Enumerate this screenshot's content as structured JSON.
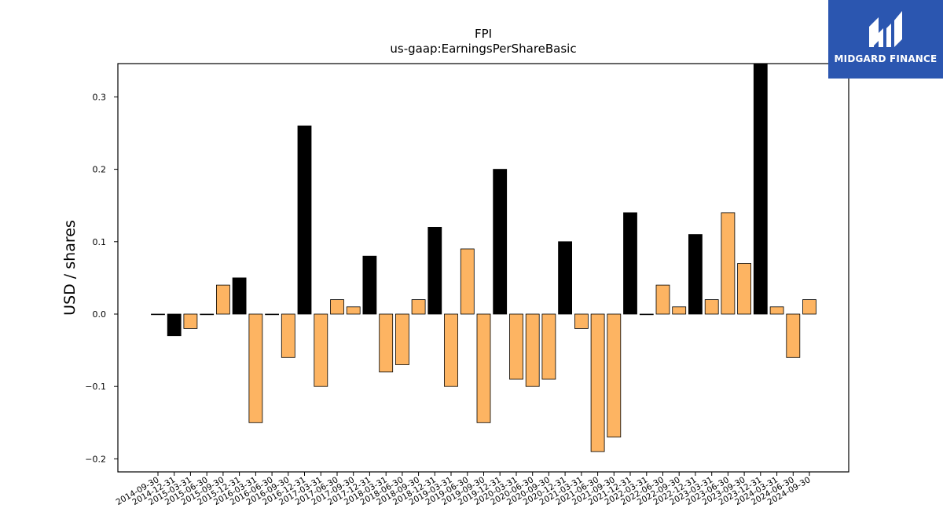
{
  "logo": {
    "text": "MIDGARD FINANCE",
    "background": "#2b56b0"
  },
  "colors": {
    "positive_quarter": "#fdb462",
    "fiscal_year_end": "#000000",
    "edge": "#000000"
  },
  "chart_data": {
    "type": "bar",
    "title": "FPI",
    "subtitle": "us-gaap:EarningsPerShareBasic",
    "xlabel": "",
    "ylabel": "USD / shares",
    "ylim": [
      -0.218,
      0.345
    ],
    "yticks": [
      -0.2,
      -0.1,
      0.0,
      0.1,
      0.2,
      0.3
    ],
    "ytick_labels": [
      "−0.2",
      "−0.1",
      "0.0",
      "0.1",
      "0.2",
      "0.3"
    ],
    "grid": false,
    "categories": [
      "2014-09-30",
      "2014-12-31",
      "2015-03-31",
      "2015-06-30",
      "2015-09-30",
      "2015-12-31",
      "2016-03-31",
      "2016-06-30",
      "2016-09-30",
      "2016-12-31",
      "2017-03-31",
      "2017-06-30",
      "2017-09-30",
      "2017-12-31",
      "2018-03-31",
      "2018-06-30",
      "2018-09-30",
      "2018-12-31",
      "2019-03-31",
      "2019-06-30",
      "2019-09-30",
      "2019-12-31",
      "2020-03-31",
      "2020-06-30",
      "2020-09-30",
      "2020-12-31",
      "2021-03-31",
      "2021-06-30",
      "2021-09-30",
      "2021-12-31",
      "2022-03-31",
      "2022-06-30",
      "2022-09-30",
      "2022-12-31",
      "2023-03-31",
      "2023-06-30",
      "2023-09-30",
      "2023-12-31",
      "2024-03-31",
      "2024-06-30",
      "2024-09-30"
    ],
    "values": [
      0.0,
      -0.03,
      -0.02,
      0.0,
      0.04,
      0.05,
      -0.15,
      0.0,
      -0.06,
      0.26,
      -0.1,
      0.02,
      0.01,
      0.08,
      -0.08,
      -0.07,
      0.02,
      0.12,
      -0.1,
      0.09,
      -0.15,
      0.2,
      -0.09,
      -0.1,
      -0.09,
      0.1,
      -0.02,
      -0.19,
      -0.17,
      0.14,
      0.0,
      0.04,
      0.01,
      0.11,
      0.02,
      0.14,
      0.07,
      0.35,
      0.01,
      -0.06,
      0.02
    ],
    "bar_colors": [
      "#000000",
      "#000000",
      "#fdb462",
      "#fdb462",
      "#fdb462",
      "#000000",
      "#fdb462",
      "#000000",
      "#fdb462",
      "#000000",
      "#fdb462",
      "#fdb462",
      "#fdb462",
      "#000000",
      "#fdb462",
      "#fdb462",
      "#fdb462",
      "#000000",
      "#fdb462",
      "#fdb462",
      "#fdb462",
      "#000000",
      "#fdb462",
      "#fdb462",
      "#fdb462",
      "#000000",
      "#fdb462",
      "#fdb462",
      "#fdb462",
      "#000000",
      "#000000",
      "#fdb462",
      "#fdb462",
      "#000000",
      "#fdb462",
      "#fdb462",
      "#fdb462",
      "#000000",
      "#fdb462",
      "#fdb462",
      "#fdb462"
    ]
  }
}
